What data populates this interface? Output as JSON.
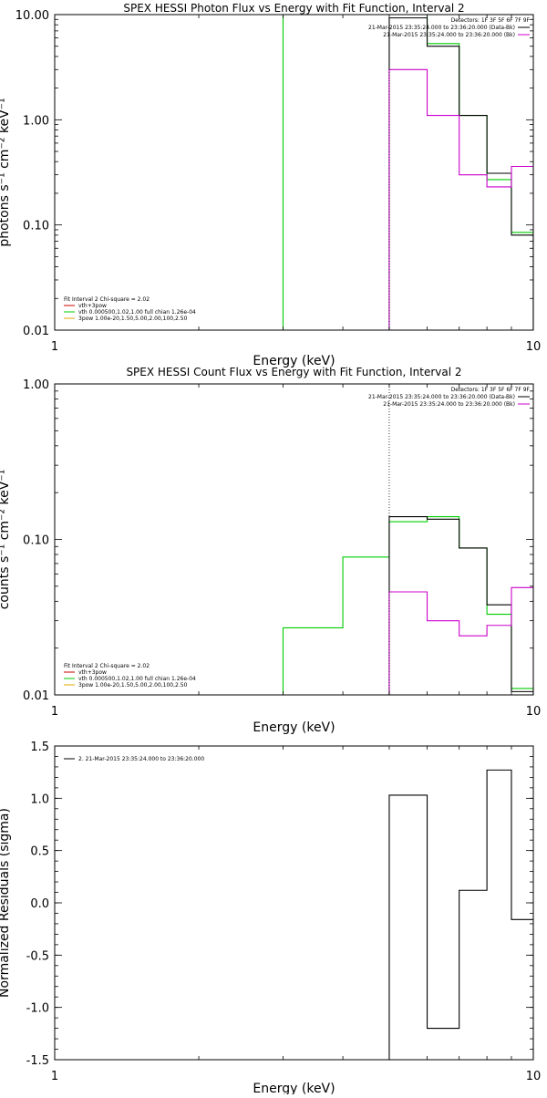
{
  "chart_data": [
    {
      "type": "line",
      "title": "SPEX HESSI Photon Flux vs Energy with Fit Function, Interval 2",
      "xlabel": "Energy (keV)",
      "ylabel": "photons s⁻¹ cm⁻² keV⁻¹",
      "x_scale": "log",
      "y_scale": "log",
      "xlim": [
        1,
        10
      ],
      "ylim": [
        0.01,
        10
      ],
      "x_ticks": [
        "1",
        "10"
      ],
      "y_ticks": [
        "0.01",
        "0.10",
        "1.00",
        "10.00"
      ],
      "grid": false,
      "vline": 5,
      "legend_right_title": "Detectors: 1F 3F 5F 6F 7F 9F",
      "legend_right": [
        {
          "label": "21-Mar-2015 23:35:24.000 to 23:36:20.000 (Data-Bk)",
          "color": "#000000"
        },
        {
          "label": "21-Mar-2015 23:35:24.000 to 23:36:20.000 (Bk)",
          "color": "#cc00cc"
        }
      ],
      "legend_left_title": "Fit Interval 2   Chi-square = 2.02",
      "legend_left": [
        {
          "label": "vth+3pow",
          "color": "#cc0000"
        },
        {
          "label": "vth 0.000500,1.02,1.00  full chian 1.26e-04",
          "color": "#00cc00"
        },
        {
          "label": "3pow 1.00e-20,1.50,5.00,2.00,100,2.50",
          "color": "#ddaa00"
        }
      ],
      "series": [
        {
          "color": "#00cc00",
          "edges": [
            3,
            5,
            6,
            7,
            8,
            9,
            10
          ],
          "values": [
            10,
            10,
            5.3,
            1.1,
            0.27,
            0.085
          ]
        },
        {
          "color": "#000000",
          "edges": [
            5,
            6,
            7,
            8,
            9,
            10
          ],
          "values": [
            9.3,
            5.0,
            1.1,
            0.31,
            0.08
          ]
        },
        {
          "color": "#cc00cc",
          "edges": [
            5,
            6,
            7,
            8,
            9,
            10
          ],
          "values": [
            3.0,
            1.1,
            0.3,
            0.23,
            0.36
          ]
        }
      ]
    },
    {
      "type": "line",
      "title": "SPEX HESSI Count Flux vs Energy with Fit Function, Interval 2",
      "xlabel": "Energy (keV)",
      "ylabel": "counts s⁻¹ cm⁻² keV⁻¹",
      "x_scale": "log",
      "y_scale": "log",
      "xlim": [
        1,
        10
      ],
      "ylim": [
        0.01,
        1
      ],
      "x_ticks": [
        "1",
        "10"
      ],
      "y_ticks": [
        "0.01",
        "0.10",
        "1.00"
      ],
      "grid": false,
      "vline": 5,
      "legend_right_title": "Detectors: 1F 3F 5F 6F 7F 9F",
      "legend_right": [
        {
          "label": "21-Mar-2015 23:35:24.000 to 23:36:20.000 (Data-Bk)",
          "color": "#000000"
        },
        {
          "label": "21-Mar-2015 23:35:24.000 to 23:36:20.000 (Bk)",
          "color": "#cc00cc"
        }
      ],
      "legend_left_title": "Fit Interval 2   Chi-square = 2.02",
      "legend_left": [
        {
          "label": "vth+3pow",
          "color": "#cc0000"
        },
        {
          "label": "vth 0.000500,1.02,1.00  full chian 1.26e-04",
          "color": "#00cc00"
        },
        {
          "label": "3pow 1.00e-20,1.50,5.00,2.00,100,2.50",
          "color": "#ddaa00"
        }
      ],
      "series": [
        {
          "color": "#00cc00",
          "edges": [
            3,
            4,
            5,
            6,
            7,
            8,
            9,
            10
          ],
          "values": [
            0.027,
            0.077,
            0.13,
            0.14,
            0.088,
            0.033,
            0.011
          ]
        },
        {
          "color": "#000000",
          "edges": [
            5,
            6,
            7,
            8,
            9,
            10
          ],
          "values": [
            0.14,
            0.135,
            0.088,
            0.038,
            0.0105
          ]
        },
        {
          "color": "#cc00cc",
          "edges": [
            5,
            6,
            7,
            8,
            9,
            10
          ],
          "values": [
            0.046,
            0.03,
            0.024,
            0.028,
            0.049
          ]
        }
      ]
    },
    {
      "type": "line",
      "title": "",
      "xlabel": "Energy (keV)",
      "ylabel": "Normalized Residuals (sigma)",
      "x_scale": "log",
      "y_scale": "linear",
      "xlim": [
        1,
        10
      ],
      "ylim": [
        -1.5,
        1.5
      ],
      "x_ticks": [
        "1",
        "10"
      ],
      "y_ticks": [
        "-1.5",
        "-1.0",
        "-0.5",
        "0.0",
        "0.5",
        "1.0",
        "1.5"
      ],
      "grid": false,
      "legend_left_title": "",
      "legend_left": [
        {
          "label": "2. 21-Mar-2015 23:35:24.000 to 23:36:20.000",
          "color": "#000000"
        }
      ],
      "series": [
        {
          "color": "#000000",
          "edges": [
            5,
            6,
            7,
            8,
            9,
            10
          ],
          "values": [
            1.03,
            -1.2,
            0.12,
            1.27,
            -0.16
          ]
        }
      ]
    }
  ]
}
